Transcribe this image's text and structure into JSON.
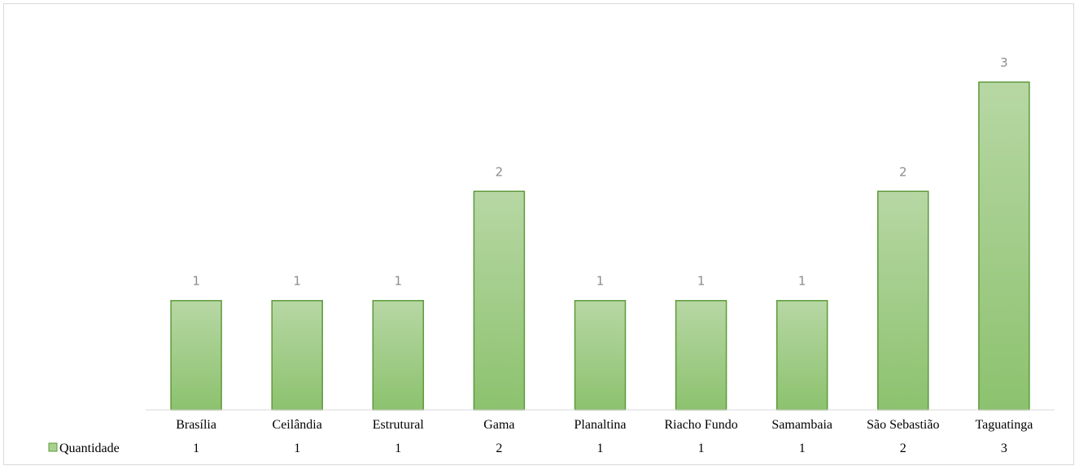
{
  "chart_data": {
    "type": "bar",
    "categories": [
      "Brasília",
      "Ceilândia",
      "Estrutural",
      "Gama",
      "Planaltina",
      "Riacho Fundo",
      "Samambaia",
      "São Sebastião",
      "Taguatinga"
    ],
    "series": [
      {
        "name": "Quantidade",
        "values": [
          1,
          1,
          1,
          2,
          1,
          1,
          1,
          2,
          3
        ]
      }
    ],
    "ylim": [
      0,
      3
    ],
    "grid": false,
    "data_labels": true,
    "data_table": true,
    "colors": {
      "bar_fill_top": "#b7d7a4",
      "bar_fill_bottom": "#8cc26e",
      "bar_stroke": "#5d9a3a",
      "label": "#8c8c8c"
    }
  }
}
